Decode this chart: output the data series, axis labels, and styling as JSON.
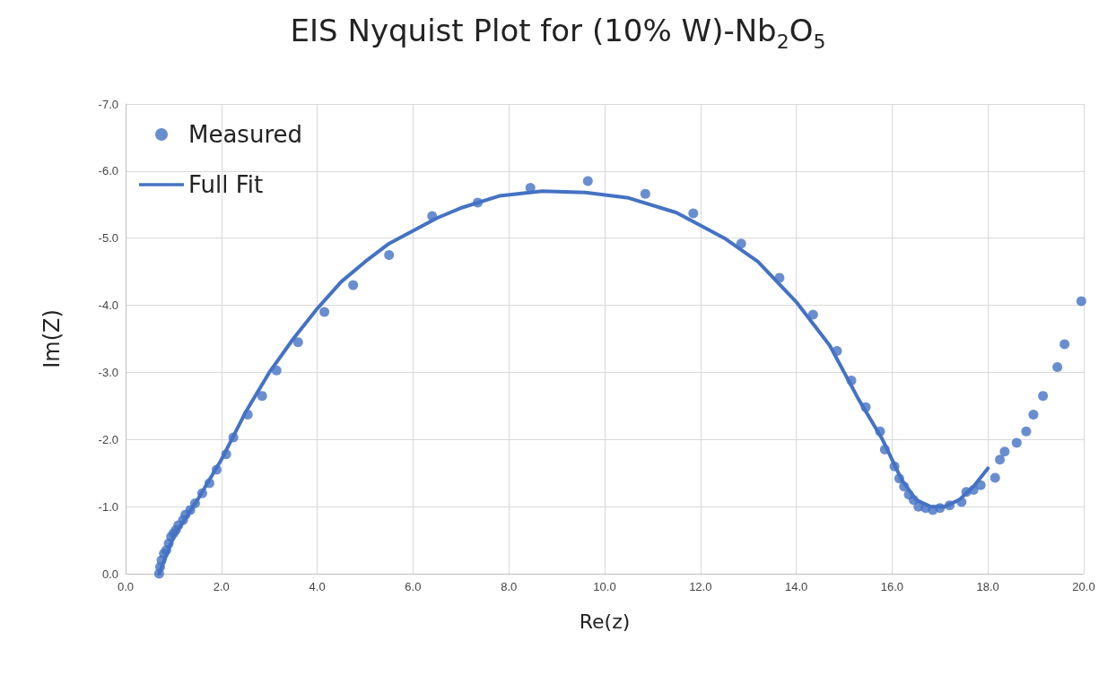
{
  "chart_data": {
    "type": "scatter",
    "title": "EIS Nyquist Plot for (10% W)-Nb$_{2}$O$_{5}$",
    "xlabel": "Re(z)",
    "ylabel": "Im(Z)",
    "xlim": [
      0,
      20
    ],
    "xticks": [
      {
        "value": 0,
        "label": "0.0"
      },
      {
        "value": 2,
        "label": "2.0"
      },
      {
        "value": 4,
        "label": "4.0"
      },
      {
        "value": 6,
        "label": "6.0"
      },
      {
        "value": 8,
        "label": "8.0"
      },
      {
        "value": 10,
        "label": "10.0"
      },
      {
        "value": 12,
        "label": "12.0"
      },
      {
        "value": 14,
        "label": "14.0"
      },
      {
        "value": 16,
        "label": "16.0"
      },
      {
        "value": 18,
        "label": "18.0"
      },
      {
        "value": 20,
        "label": "20.0"
      }
    ],
    "ylim": [
      0,
      -7
    ],
    "yticks": [
      {
        "value": 0,
        "label": "0.0"
      },
      {
        "value": -1,
        "label": "-1.0"
      },
      {
        "value": -2,
        "label": "-2.0"
      },
      {
        "value": -3,
        "label": "-3.0"
      },
      {
        "value": -4,
        "label": "-4.0"
      },
      {
        "value": -5,
        "label": "-5.0"
      },
      {
        "value": -6,
        "label": "-6.0"
      },
      {
        "value": -7,
        "label": "-7.0"
      }
    ],
    "grid": true,
    "legend": "top left",
    "series": [
      {
        "name": "Measured",
        "color": "#4472c4",
        "marker": "circle",
        "x": [
          0.7,
          0.72,
          0.75,
          0.8,
          0.85,
          0.9,
          0.95,
          1.0,
          1.05,
          1.1,
          1.2,
          1.25,
          1.35,
          1.45,
          1.6,
          1.75,
          1.9,
          2.1,
          2.25,
          2.55,
          2.85,
          3.15,
          3.6,
          4.15,
          4.75,
          5.5,
          6.4,
          7.35,
          8.45,
          9.65,
          10.85,
          11.85,
          12.85,
          13.65,
          14.35,
          14.85,
          15.15,
          15.45,
          15.75,
          15.85,
          16.05,
          16.15,
          16.25,
          16.35,
          16.45,
          16.55,
          16.7,
          16.85,
          17.0,
          17.2,
          17.45,
          17.55,
          17.7,
          17.85,
          18.15,
          18.25,
          18.35,
          18.6,
          18.8,
          18.95,
          19.15,
          19.45,
          19.6,
          19.95
        ],
        "values": [
          0.0,
          -0.1,
          -0.2,
          -0.3,
          -0.35,
          -0.45,
          -0.55,
          -0.6,
          -0.65,
          -0.72,
          -0.8,
          -0.88,
          -0.95,
          -1.05,
          -1.2,
          -1.35,
          -1.55,
          -1.78,
          -2.03,
          -2.37,
          -2.65,
          -3.03,
          -3.45,
          -3.9,
          -4.3,
          -4.75,
          -5.33,
          -5.53,
          -5.75,
          -5.85,
          -5.66,
          -5.37,
          -4.92,
          -4.41,
          -3.86,
          -3.32,
          -2.88,
          -2.48,
          -2.12,
          -1.85,
          -1.6,
          -1.42,
          -1.3,
          -1.18,
          -1.1,
          -1.0,
          -0.98,
          -0.95,
          -0.98,
          -1.02,
          -1.07,
          -1.22,
          -1.25,
          -1.32,
          -1.43,
          -1.7,
          -1.82,
          -1.95,
          -2.12,
          -2.37,
          -2.65,
          -3.08,
          -3.42,
          -4.06
        ]
      },
      {
        "name": "Full Fit",
        "type": "line",
        "color": "#4472c4",
        "marker": "none",
        "line_style": "solid",
        "x": [
          0.7,
          1.0,
          1.5,
          2.0,
          2.5,
          3.0,
          3.5,
          4.0,
          4.5,
          5.0,
          5.5,
          6.5,
          7.0,
          7.8,
          8.7,
          9.6,
          10.5,
          11.5,
          12.5,
          13.2,
          14.0,
          14.7,
          15.3,
          15.8,
          16.2,
          16.5,
          16.8,
          17.1,
          17.4,
          17.7,
          18.0
        ],
        "values": [
          0.0,
          -0.55,
          -1.1,
          -1.7,
          -2.4,
          -3.0,
          -3.5,
          -3.95,
          -4.35,
          -4.65,
          -4.92,
          -5.3,
          -5.45,
          -5.63,
          -5.7,
          -5.68,
          -5.6,
          -5.38,
          -5.0,
          -4.65,
          -4.05,
          -3.4,
          -2.6,
          -2.0,
          -1.4,
          -1.1,
          -1.0,
          -1.0,
          -1.1,
          -1.3,
          -1.57
        ]
      }
    ]
  }
}
